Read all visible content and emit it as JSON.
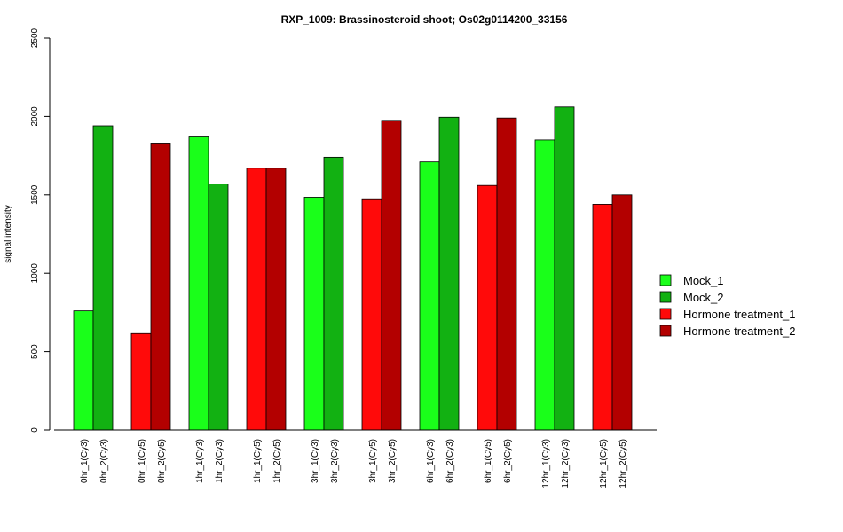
{
  "chart_data": {
    "type": "bar",
    "title": "RXP_1009: Brassinosteroid shoot; Os02g0114200_33156",
    "xlabel": "",
    "ylabel": "signal intensity",
    "ylim": [
      0,
      2500
    ],
    "yticks": [
      0,
      500,
      1000,
      1500,
      2000,
      2500
    ],
    "grid": false,
    "legend_position": "right",
    "legend": [
      {
        "name": "Mock_1",
        "color": "#1aff1a"
      },
      {
        "name": "Mock_2",
        "color": "#12b112"
      },
      {
        "name": "Hormone treatment_1",
        "color": "#ff0a0a"
      },
      {
        "name": "Hormone treatment_2",
        "color": "#b30000"
      }
    ],
    "groups": [
      {
        "bars": [
          {
            "label": "0hr_1(Cy3)",
            "value": 760,
            "color": "#1aff1a"
          },
          {
            "label": "0hr_2(Cy3)",
            "value": 1940,
            "color": "#12b112"
          }
        ]
      },
      {
        "bars": [
          {
            "label": "0hr_1(Cy5)",
            "value": 615,
            "color": "#ff0a0a"
          },
          {
            "label": "0hr_2(Cy5)",
            "value": 1830,
            "color": "#b30000"
          }
        ]
      },
      {
        "bars": [
          {
            "label": "1hr_1(Cy3)",
            "value": 1875,
            "color": "#1aff1a"
          },
          {
            "label": "1hr_2(Cy3)",
            "value": 1570,
            "color": "#12b112"
          }
        ]
      },
      {
        "bars": [
          {
            "label": "1hr_1(Cy5)",
            "value": 1670,
            "color": "#ff0a0a"
          },
          {
            "label": "1hr_2(Cy5)",
            "value": 1670,
            "color": "#b30000"
          }
        ]
      },
      {
        "bars": [
          {
            "label": "3hr_1(Cy3)",
            "value": 1485,
            "color": "#1aff1a"
          },
          {
            "label": "3hr_2(Cy3)",
            "value": 1740,
            "color": "#12b112"
          }
        ]
      },
      {
        "bars": [
          {
            "label": "3hr_1(Cy5)",
            "value": 1475,
            "color": "#ff0a0a"
          },
          {
            "label": "3hr_2(Cy5)",
            "value": 1975,
            "color": "#b30000"
          }
        ]
      },
      {
        "bars": [
          {
            "label": "6hr_1(Cy3)",
            "value": 1710,
            "color": "#1aff1a"
          },
          {
            "label": "6hr_2(Cy3)",
            "value": 1995,
            "color": "#12b112"
          }
        ]
      },
      {
        "bars": [
          {
            "label": "6hr_1(Cy5)",
            "value": 1560,
            "color": "#ff0a0a"
          },
          {
            "label": "6hr_2(Cy5)",
            "value": 1990,
            "color": "#b30000"
          }
        ]
      },
      {
        "bars": [
          {
            "label": "12hr_1(Cy3)",
            "value": 1850,
            "color": "#1aff1a"
          },
          {
            "label": "12hr_2(Cy3)",
            "value": 2060,
            "color": "#12b112"
          }
        ]
      },
      {
        "bars": [
          {
            "label": "12hr_1(Cy5)",
            "value": 1440,
            "color": "#ff0a0a"
          },
          {
            "label": "12hr_2(Cy5)",
            "value": 1500,
            "color": "#b30000"
          }
        ]
      }
    ]
  }
}
